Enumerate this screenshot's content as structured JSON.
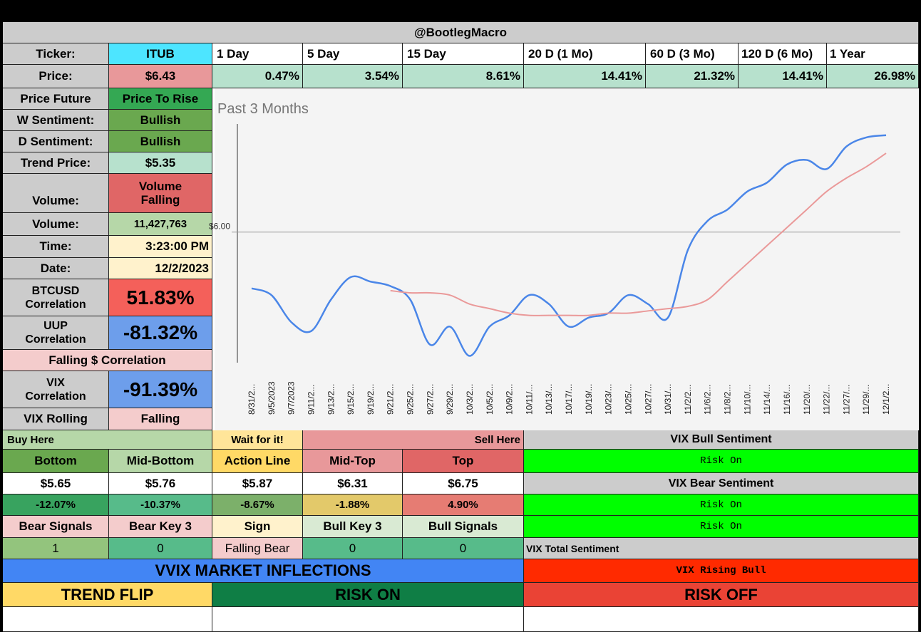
{
  "header": {
    "title": "@BootlegMacro"
  },
  "ticker_row": {
    "label": "Ticker:",
    "ticker": "ITUB",
    "periods": [
      "1 Day",
      "5 Day",
      "15 Day",
      "20 D (1 Mo)",
      "60 D (3 Mo)",
      "120 D (6 Mo)",
      "1 Year"
    ]
  },
  "price_row": {
    "label": "Price:",
    "price": "$6.43",
    "changes": [
      "0.47%",
      "3.54%",
      "8.61%",
      "14.41%",
      "21.32%",
      "14.41%",
      "26.98%"
    ]
  },
  "left_panel": [
    {
      "label": "Price Future",
      "value": "Price To Rise"
    },
    {
      "label": "W Sentiment:",
      "value": "Bullish"
    },
    {
      "label": "D Sentiment:",
      "value": "Bullish"
    },
    {
      "label": "Trend Price:",
      "value": "$5.35"
    },
    {
      "label": "Volume:",
      "value_line1": "Volume",
      "value_line2": "Falling"
    },
    {
      "label": "Volume:",
      "value": "11,427,763"
    },
    {
      "label": "Time:",
      "value": "3:23:00 PM"
    },
    {
      "label": "Date:",
      "value": "12/2/2023"
    },
    {
      "label_line1": "BTCUSD",
      "label_line2": "Correlation",
      "value": "51.83%"
    },
    {
      "label_line1": "UUP",
      "label_line2": "Correlation",
      "value": "-81.32%"
    },
    {
      "label": "Falling $ Correlation"
    },
    {
      "label_line1": "VIX",
      "label_line2": "Correlation",
      "value": "-91.39%"
    },
    {
      "label": "VIX Rolling",
      "value": "Falling"
    }
  ],
  "chart_data": {
    "type": "line",
    "title": "Past 3 Months",
    "y_tick_label": "$6.00",
    "x": [
      "8/31/2...",
      "9/5/2023",
      "9/7/2023",
      "9/11/2...",
      "9/13/2...",
      "9/15/2...",
      "9/19/2...",
      "9/21/2...",
      "9/25/2...",
      "9/27/2...",
      "9/29/2...",
      "10/3/2...",
      "10/5/2...",
      "10/9/2...",
      "10/11/...",
      "10/13/...",
      "10/17/...",
      "10/19/...",
      "10/23/...",
      "10/25/...",
      "10/27/...",
      "10/31/...",
      "11/2/2...",
      "11/6/2...",
      "11/8/2...",
      "11/10/...",
      "11/14/...",
      "11/16/...",
      "11/20/...",
      "11/22/...",
      "11/27/...",
      "11/29/...",
      "12/1/2..."
    ],
    "series": [
      {
        "color": "#4a86e8",
        "values": [
          5.75,
          5.72,
          5.6,
          5.56,
          5.7,
          5.8,
          5.78,
          5.76,
          5.7,
          5.5,
          5.58,
          5.45,
          5.58,
          5.63,
          5.72,
          5.68,
          5.58,
          5.62,
          5.64,
          5.72,
          5.68,
          5.62,
          5.92,
          6.05,
          6.1,
          6.18,
          6.22,
          6.3,
          6.32,
          6.28,
          6.38,
          6.42,
          6.43
        ]
      },
      {
        "color": "#ea9999",
        "values": [
          null,
          null,
          null,
          null,
          null,
          null,
          null,
          5.74,
          5.73,
          5.73,
          5.72,
          5.68,
          5.66,
          5.64,
          5.63,
          5.63,
          5.63,
          5.63,
          5.64,
          5.64,
          5.65,
          5.66,
          5.67,
          5.7,
          5.78,
          5.86,
          5.94,
          6.02,
          6.1,
          6.18,
          6.24,
          6.29,
          6.35
        ]
      }
    ]
  },
  "levels": {
    "headers": {
      "buy": "Buy Here",
      "wait": "Wait for it!",
      "sell": "Sell Here"
    },
    "names": [
      "Bottom",
      "Mid-Bottom",
      "Action Line",
      "Mid-Top",
      "Top"
    ],
    "prices": [
      "$5.65",
      "$5.76",
      "$5.87",
      "$6.31",
      "$6.75"
    ],
    "pcts": [
      "-12.07%",
      "-10.37%",
      "-8.67%",
      "-1.88%",
      "4.90%"
    ],
    "signal_names": [
      "Bear Signals",
      "Bear Key 3",
      "Sign",
      "Bull Key 3",
      "Bull Signals"
    ],
    "signal_values": [
      "1",
      "0",
      "Falling Bear",
      "0",
      "0"
    ]
  },
  "vix": {
    "bull_title": "VIX Bull Sentiment",
    "bull_value": "Risk On",
    "bear_title": "VIX Bear Sentiment",
    "bear_value1": "Risk On",
    "bear_value2": "Risk On",
    "total_title": "VIX Total Sentiment",
    "total_value": "VIX Rising Bull"
  },
  "footer": {
    "vvix": "VVIX MARKET INFLECTIONS",
    "trend_flip": "TREND FLIP",
    "risk_on": "RISK ON",
    "risk_off": "RISK OFF"
  }
}
